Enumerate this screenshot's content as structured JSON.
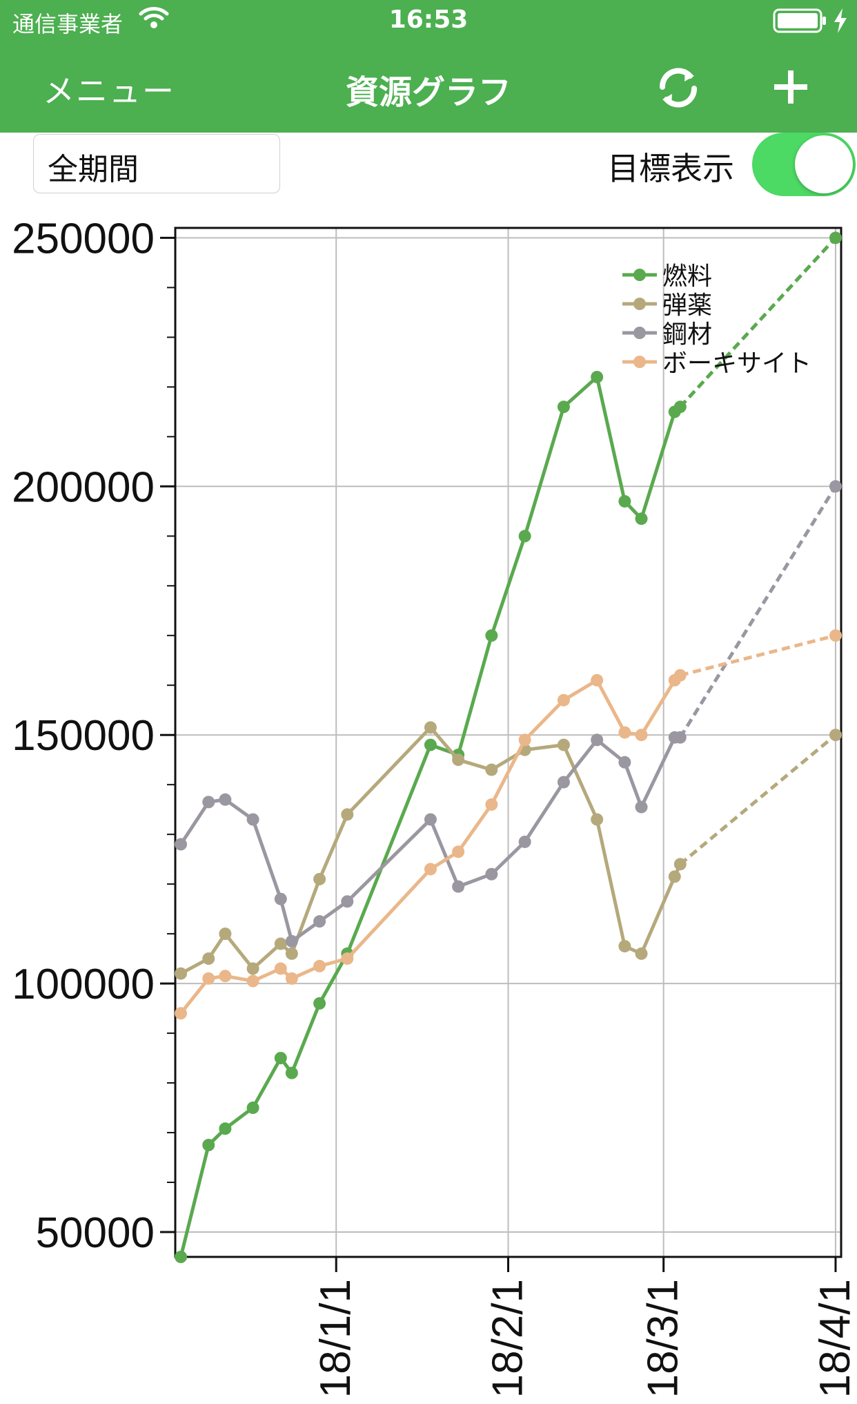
{
  "status_bar": {
    "carrier": "通信事業者",
    "time": "16:53",
    "wifi_icon": "wifi-icon",
    "battery_icon": "battery-icon"
  },
  "nav": {
    "menu_label": "メニュー",
    "title": "資源グラフ",
    "refresh_icon": "refresh-icon",
    "add_icon": "add-icon"
  },
  "controls": {
    "period_value": "全期間",
    "goal_label": "目標表示",
    "goal_toggle_on": true
  },
  "colors": {
    "header": "#4caf50",
    "toggle": "#4cd964",
    "fuel": "#5aa94f",
    "ammo": "#b5a97c",
    "steel": "#9a97a1",
    "bauxite": "#eab78a"
  },
  "chart_data": {
    "type": "line",
    "title": "",
    "xlabel": "",
    "ylabel": "",
    "ylim": [
      45000,
      252000
    ],
    "xlim": [
      "2017-12-03",
      "2018-04-02"
    ],
    "y_ticks": [
      "250000",
      "200000",
      "150000",
      "100000",
      "50000"
    ],
    "x_ticks": [
      "18/1/1",
      "18/2/1",
      "18/3/1",
      "18/4/1"
    ],
    "x_tick_dates": [
      "2018-01-01",
      "2018-02-01",
      "2018-03-01",
      "2018-04-01"
    ],
    "legend_position": "top-right",
    "grid": true,
    "x": [
      "2017-12-04",
      "2017-12-09",
      "2017-12-12",
      "2017-12-17",
      "2017-12-22",
      "2017-12-24",
      "2017-12-29",
      "2018-01-03",
      "2018-01-18",
      "2018-01-23",
      "2018-01-29",
      "2018-02-04",
      "2018-02-11",
      "2018-02-17",
      "2018-02-22",
      "2018-02-25",
      "2018-03-03",
      "2018-03-04"
    ],
    "series": [
      {
        "name": "燃料",
        "values": [
          45000,
          67500,
          70800,
          75000,
          85000,
          82000,
          96000,
          106000,
          148000,
          146000,
          170000,
          190000,
          216000,
          222000,
          197000,
          193500,
          215000,
          216000
        ]
      },
      {
        "name": "弾薬",
        "values": [
          102000,
          105000,
          110000,
          103000,
          108000,
          106000,
          121000,
          134000,
          151500,
          145000,
          143000,
          147000,
          148000,
          133000,
          107500,
          106000,
          121500,
          124000
        ]
      },
      {
        "name": "鋼材",
        "values": [
          128000,
          136500,
          137000,
          133000,
          117000,
          108500,
          112500,
          116500,
          133000,
          119500,
          122000,
          128500,
          140500,
          149000,
          144500,
          135500,
          149500,
          149500
        ]
      },
      {
        "name": "ボーキサイト",
        "values": [
          94000,
          101000,
          101500,
          100500,
          103000,
          101000,
          103500,
          105000,
          123000,
          126500,
          136000,
          149000,
          157000,
          161000,
          150500,
          150000,
          161000,
          162000
        ]
      }
    ],
    "targets": {
      "date": "2018-04-01",
      "values": [
        250000,
        150000,
        200000,
        170000
      ]
    }
  }
}
